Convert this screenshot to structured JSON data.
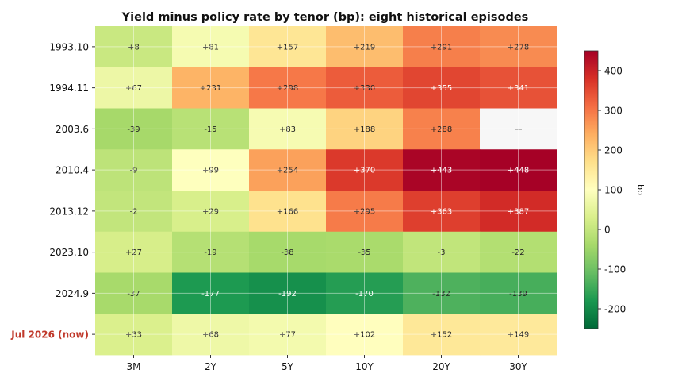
{
  "chart_data": {
    "type": "heatmap",
    "title": "Yield minus policy rate by tenor (bp): eight historical episodes",
    "xlabel": "",
    "ylabel": "",
    "categories": [
      "3M",
      "2Y",
      "5Y",
      "10Y",
      "20Y",
      "30Y"
    ],
    "rows": [
      "1993.10",
      "1994.11",
      "2003.6",
      "2010.4",
      "2013.12",
      "2023.10",
      "2024.9",
      "Jul 2026 (now)"
    ],
    "highlight_row": "Jul 2026 (now)",
    "highlight_color": "#c0392b",
    "values": [
      [
        8,
        81,
        157,
        219,
        291,
        278
      ],
      [
        67,
        231,
        298,
        330,
        355,
        341
      ],
      [
        -39,
        -15,
        83,
        188,
        288,
        null
      ],
      [
        -9,
        99,
        254,
        370,
        443,
        448
      ],
      [
        -2,
        29,
        166,
        295,
        363,
        387
      ],
      [
        27,
        -19,
        -38,
        -35,
        -3,
        -22
      ],
      [
        -37,
        -177,
        -192,
        -170,
        -132,
        -139
      ],
      [
        33,
        68,
        77,
        102,
        152,
        149
      ]
    ],
    "missing_label": "—",
    "colorbar": {
      "label": "bp",
      "colormap": "RdYlGn_r",
      "vmin": -250,
      "vmax": 450,
      "ticks": [
        400,
        300,
        200,
        100,
        0,
        -100,
        -200
      ],
      "tick_labels": [
        "400",
        "300",
        "200",
        "100",
        "0",
        "-100",
        "-200"
      ]
    },
    "grid": true
  }
}
